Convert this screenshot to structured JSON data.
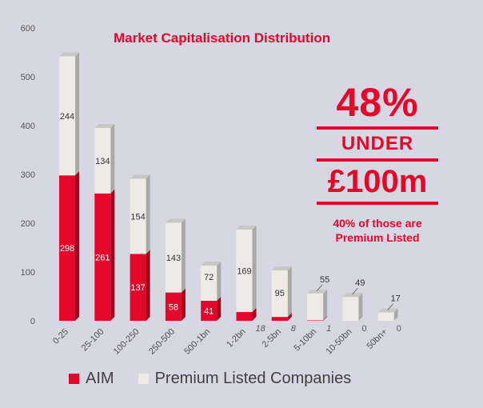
{
  "title": "Market Capitalisation Distribution",
  "callout": {
    "big": "48%",
    "under": "UNDER",
    "amount": "£100m",
    "note_line1": "40% of those are",
    "note_line2": "Premium Listed"
  },
  "colors": {
    "aim": "#e4072a",
    "premium": "#eeebe7",
    "accent": "#e4072a",
    "background": "#d6d7e3"
  },
  "chart_data": {
    "type": "bar",
    "stacked": true,
    "categories": [
      "0-25",
      "25-100",
      "100-250",
      "250-500",
      "500-1bn",
      "1-2bn",
      "2-5bn",
      "5-10bn",
      "10-50bn",
      "50bn+"
    ],
    "series": [
      {
        "name": "AIM",
        "values": [
          298,
          261,
          137,
          58,
          41,
          18,
          8,
          1,
          0,
          0
        ]
      },
      {
        "name": "Premium Listed Companies",
        "values": [
          244,
          134,
          154,
          143,
          72,
          169,
          95,
          55,
          49,
          17
        ]
      }
    ],
    "y_ticks": [
      0,
      100,
      200,
      300,
      400,
      500,
      600
    ],
    "ylim": [
      0,
      600
    ],
    "grid": false,
    "legend_position": "bottom-left"
  }
}
